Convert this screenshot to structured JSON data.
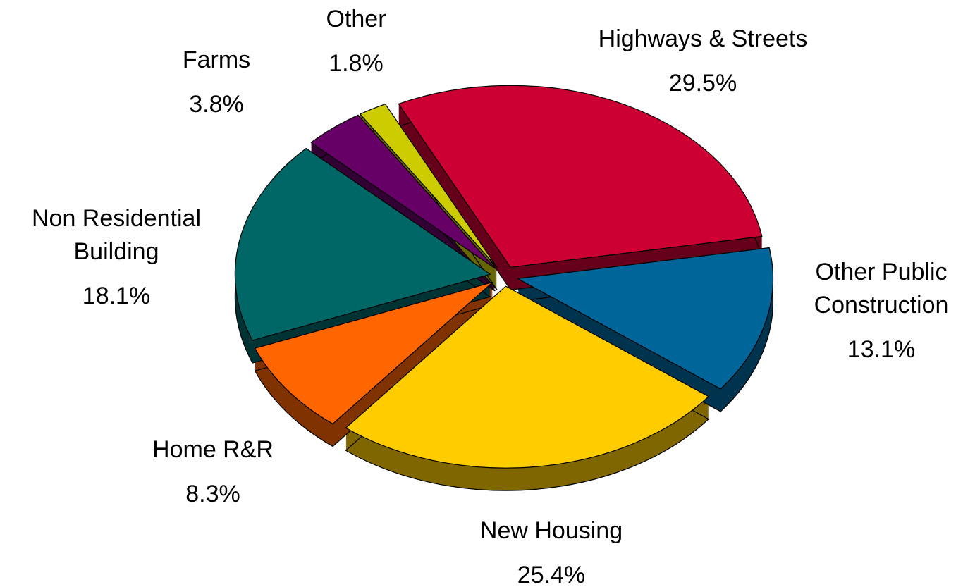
{
  "chart_data": {
    "type": "pie",
    "categories": [
      "Highways & Streets",
      "Other Public\nConstruction",
      "New Housing",
      "Home R&R",
      "Non Residential\nBuilding",
      "Farms",
      "Other"
    ],
    "values": [
      29.5,
      13.1,
      25.4,
      8.3,
      18.1,
      3.8,
      1.8
    ],
    "value_labels": [
      "29.5%",
      "13.1%",
      "25.4%",
      "8.3%",
      "18.1%",
      "3.8%",
      "1.8%"
    ],
    "colors": [
      "#cc0033",
      "#006699",
      "#ffcc00",
      "#ff6600",
      "#006666",
      "#660066",
      "#cccc00"
    ]
  }
}
